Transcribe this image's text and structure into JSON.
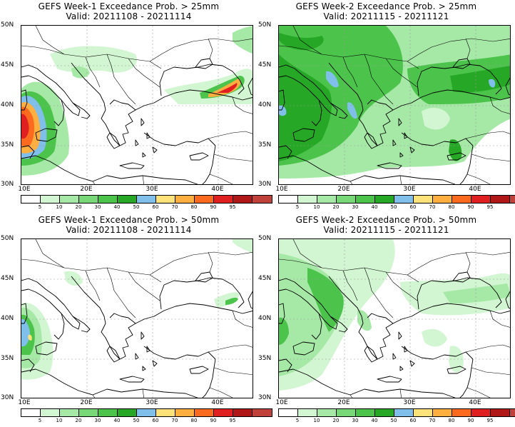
{
  "colorbar": {
    "colors": [
      "#ffffff",
      "#d2f5d2",
      "#a6e8a6",
      "#78d878",
      "#4cc44c",
      "#26a826",
      "#7fbfe9",
      "#ffe27a",
      "#ffae40",
      "#fb6a1e",
      "#e02020",
      "#b01818",
      "#c0403a"
    ],
    "labels": [
      "5",
      "10",
      "20",
      "30",
      "40",
      "50",
      "60",
      "70",
      "80",
      "90",
      "95"
    ]
  },
  "axes": {
    "lat_labels": [
      "50N",
      "45N",
      "40N",
      "35N",
      "30N"
    ],
    "lon_labels": [
      "10E",
      "20E",
      "30E",
      "40E"
    ]
  },
  "panels": [
    {
      "title": "GEFS Week-1 Exceedance Prob. > 25mm",
      "valid": "Valid: 20211108 - 20211114"
    },
    {
      "title": "GEFS Week-2 Exceedance Prob. > 25mm",
      "valid": "Valid: 20211115 - 20211121"
    },
    {
      "title": "GEFS Week-1 Exceedance Prob. > 50mm",
      "valid": "Valid: 20211108 - 20211114"
    },
    {
      "title": "GEFS Week-2 Exceedance Prob. > 50mm",
      "valid": "Valid: 20211115 - 20211121"
    }
  ]
}
